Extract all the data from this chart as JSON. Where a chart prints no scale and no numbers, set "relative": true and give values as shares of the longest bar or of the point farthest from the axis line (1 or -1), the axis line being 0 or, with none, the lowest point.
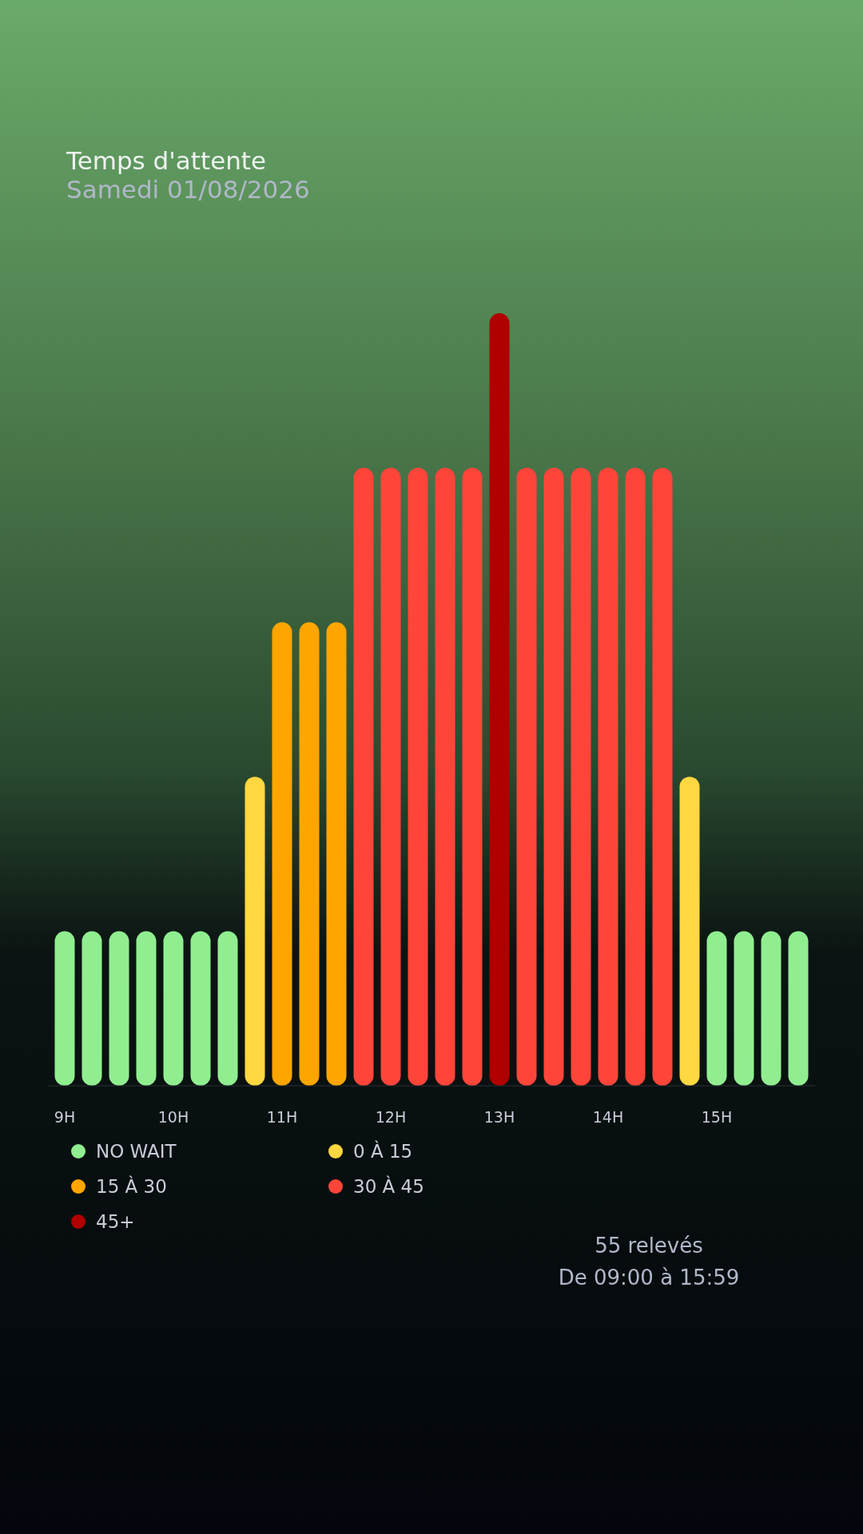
{
  "chart_data": {
    "type": "bar",
    "title": "Temps d'attente",
    "subtitle": "Samedi 01/08/2026",
    "categories": [
      "9H",
      null,
      null,
      null,
      "10H",
      null,
      null,
      null,
      "11H",
      null,
      null,
      null,
      "12H",
      null,
      null,
      null,
      "13H",
      null,
      null,
      null,
      "14H",
      null,
      null,
      null,
      "15H",
      null,
      null,
      null
    ],
    "relative": true,
    "legend": "bottom left",
    "grid": false,
    "series": [
      {
        "name": "NO WAIT",
        "color": "#90ee90",
        "values": [
          0.2,
          0.2,
          0.2,
          0.2,
          0.2,
          0.2,
          0.2,
          null,
          null,
          null,
          null,
          null,
          null,
          null,
          null,
          null,
          null,
          null,
          null,
          null,
          null,
          null,
          null,
          null,
          0.2,
          0.2,
          0.2,
          0.2
        ]
      },
      {
        "name": "0 À 15",
        "color": "#ffd740",
        "values": [
          null,
          null,
          null,
          null,
          null,
          null,
          null,
          0.4,
          null,
          null,
          null,
          null,
          null,
          null,
          null,
          null,
          null,
          null,
          null,
          null,
          null,
          null,
          null,
          0.4,
          null,
          null,
          null,
          null
        ]
      },
      {
        "name": "15 À 30",
        "color": "#ffa500",
        "values": [
          null,
          null,
          null,
          null,
          null,
          null,
          null,
          null,
          0.6,
          0.6,
          0.6,
          null,
          null,
          null,
          null,
          null,
          null,
          null,
          null,
          null,
          null,
          null,
          null,
          null,
          null,
          null,
          null,
          null
        ]
      },
      {
        "name": "30 À 45",
        "color": "#ff453a",
        "values": [
          null,
          null,
          null,
          null,
          null,
          null,
          null,
          null,
          null,
          null,
          null,
          0.8,
          0.8,
          0.8,
          0.8,
          0.8,
          null,
          0.8,
          0.8,
          0.8,
          0.8,
          0.8,
          0.8,
          null,
          null,
          null,
          null,
          null
        ]
      },
      {
        "name": "45+",
        "color": "#b00000",
        "values": [
          null,
          null,
          null,
          null,
          null,
          null,
          null,
          null,
          null,
          null,
          null,
          null,
          null,
          null,
          null,
          null,
          1,
          null,
          null,
          null,
          null,
          null,
          null,
          null,
          null,
          null,
          null,
          null
        ]
      }
    ],
    "annotations": [
      "55 relevés",
      "De 09:00 à 15:59"
    ]
  }
}
